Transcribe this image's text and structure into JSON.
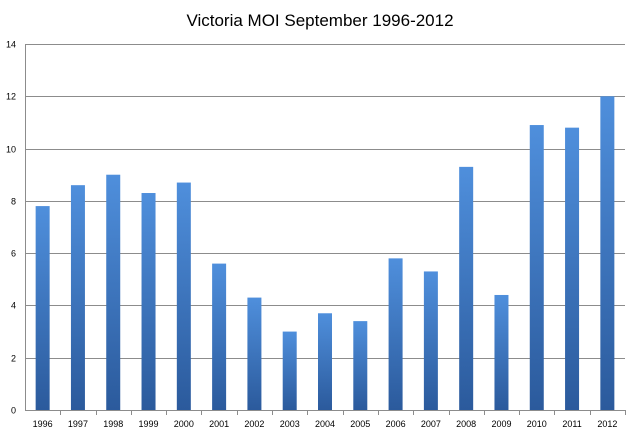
{
  "chart_data": {
    "type": "bar",
    "title": "Victoria MOI September 1996-2012",
    "xlabel": "",
    "ylabel": "",
    "categories": [
      "1996",
      "1997",
      "1998",
      "1999",
      "2000",
      "2001",
      "2002",
      "2003",
      "2004",
      "2005",
      "2006",
      "2007",
      "2008",
      "2009",
      "2010",
      "2011",
      "2012"
    ],
    "values": [
      7.8,
      8.6,
      9.0,
      8.3,
      8.7,
      5.6,
      4.3,
      3.0,
      3.7,
      3.4,
      5.8,
      5.3,
      9.3,
      4.4,
      10.9,
      10.8,
      12.0
    ],
    "ylim": [
      0,
      14
    ],
    "yticks": [
      "0",
      "2",
      "4",
      "6",
      "8",
      "10",
      "12",
      "14"
    ],
    "grid": true,
    "legend": "none",
    "colors": {
      "bar_top": "#4f8fdc",
      "bar_bottom": "#2b5a9c",
      "grid": "#8c8c8c",
      "axis": "#8c8c8c"
    }
  }
}
